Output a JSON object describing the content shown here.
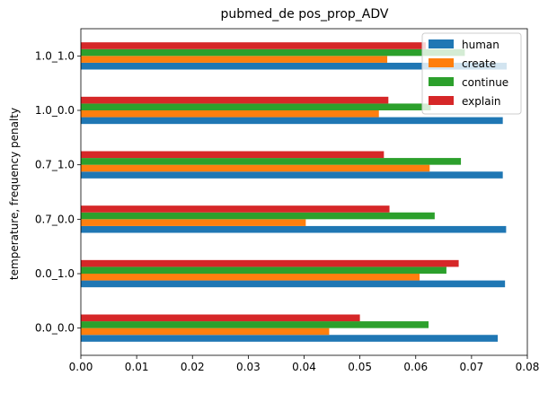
{
  "chart_data": {
    "type": "bar",
    "orientation": "horizontal",
    "title": "pubmed_de pos_prop_ADV",
    "xlabel": "",
    "ylabel": "temperature, frequency penalty",
    "categories": [
      "0.0_0.0",
      "0.0_1.0",
      "0.7_0.0",
      "0.7_1.0",
      "1.0_0.0",
      "1.0_1.0"
    ],
    "xlim": [
      0,
      0.08
    ],
    "xticks": [
      "0.00",
      "0.01",
      "0.02",
      "0.03",
      "0.04",
      "0.05",
      "0.06",
      "0.07",
      "0.08"
    ],
    "grid": false,
    "legend_position": "upper right",
    "series": [
      {
        "name": "human",
        "color": "#1f77b4",
        "values": [
          0.0747,
          0.076,
          0.0762,
          0.0756,
          0.0756,
          0.0763
        ]
      },
      {
        "name": "create",
        "color": "#ff7f0e",
        "values": [
          0.0445,
          0.0607,
          0.0403,
          0.0625,
          0.0534,
          0.0549
        ]
      },
      {
        "name": "continue",
        "color": "#2ca02c",
        "values": [
          0.0623,
          0.0655,
          0.0634,
          0.0681,
          0.0627,
          0.0688
        ]
      },
      {
        "name": "explain",
        "color": "#d62728",
        "values": [
          0.05,
          0.0677,
          0.0553,
          0.0543,
          0.0551,
          0.0618
        ]
      }
    ]
  }
}
